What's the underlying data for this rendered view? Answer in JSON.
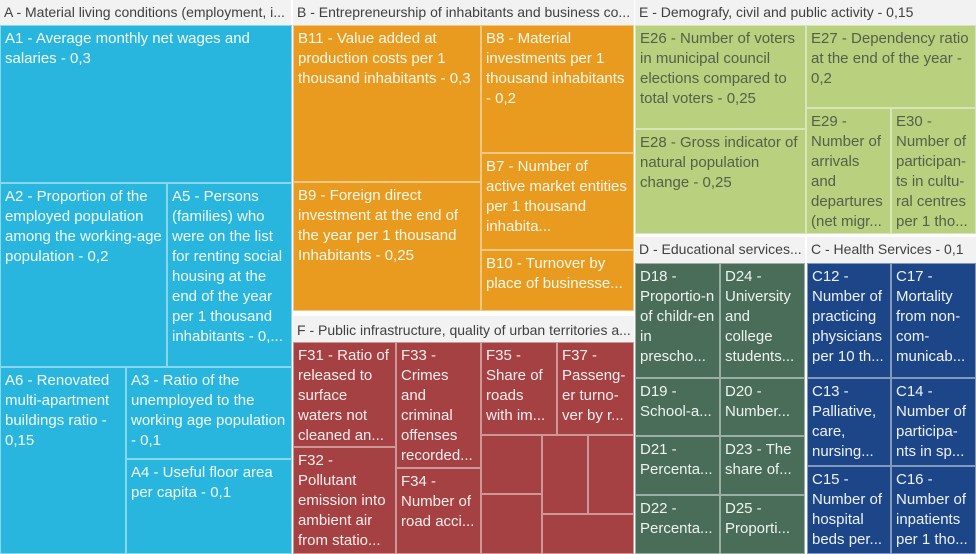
{
  "groups": {
    "A": {
      "label": "A - Material living conditions (employment, i...",
      "color": "#29b6de",
      "tiles": [
        "A1 - Average monthly net wages and salaries - 0,3",
        "A2 - Proportion of the employed population among the working-age population - 0,2",
        "A5 - Persons (families) who were on the list for renting social housing at the end of the year per 1 thousand inhabitants - 0,...",
        "A6 - Renovated multi-apartment buildings ratio - 0,15",
        "A3 - Ratio of the unemployed to the working age population - 0,1",
        "A4 - Useful floor area per capita - 0,1"
      ]
    },
    "B": {
      "label": "B - Entrepreneurship of inhabitants and business co...",
      "color": "#e89b1f",
      "tiles": [
        "B11 - Value added at production costs per 1 thousand inhabitants - 0,3",
        "B8 - Material investments per 1 thousand inhabitants - 0,2",
        "B9 - Foreign direct investment at the end of the year per 1 thousand Inhabitants - 0,25",
        "B7 - Number of active market entities per 1 thousand inhabita...",
        "B10 - Turnover by place of businesse..."
      ]
    },
    "F": {
      "label": "F - Public infrastructure, quality of urban territories a...",
      "color": "#a54142",
      "tiles": [
        "F31 - Ratio of released to surface waters not cleaned an...",
        "F32 - Pollutant emission into ambient air from statio...",
        "F33 - Crimes and criminal offenses recorded...",
        "F34 - Number of road acci...",
        "F35 - Share of roads with im...",
        "F37 - Passeng-er turno-ver by r..."
      ]
    },
    "E": {
      "label": "E - Demografy, civil and public activity - 0,15",
      "color": "#b9d07f",
      "tiles": [
        "E26 - Number of voters in municipal council elections compared to total voters - 0,25",
        "E28 - Gross indicator of natural population change - 0,25",
        "E27 - Dependency ratio at the end of the year - 0,2",
        "E29 - Number of arrivals and departures (net migr...",
        "E30 - Number of participan-ts in cultu-ral centres per 1 tho..."
      ]
    },
    "D": {
      "label": "D - Educational services...",
      "color": "#496d59",
      "tiles": [
        "D18 - Proportio-n of childr-en in prescho...",
        "D24 - University and college students...",
        "D19 - School-a...",
        "D20 - Number...",
        "D21 - Percenta...",
        "D23 - The share of...",
        "D22 - Percenta...",
        "D25 - Proporti..."
      ]
    },
    "C": {
      "label": "C - Health Services - 0,1",
      "color": "#1d4688",
      "tiles": [
        "C12 - Number of practicing physicians per 10 th...",
        "C17 - Mortality from non-com-municab...",
        "C13 - Palliative, care, nursing...",
        "C14 - Number of participa-nts in sp...",
        "C15 - Number of hospital beds per...",
        "C16 - Number of inpatients per 1 tho..."
      ]
    }
  }
}
